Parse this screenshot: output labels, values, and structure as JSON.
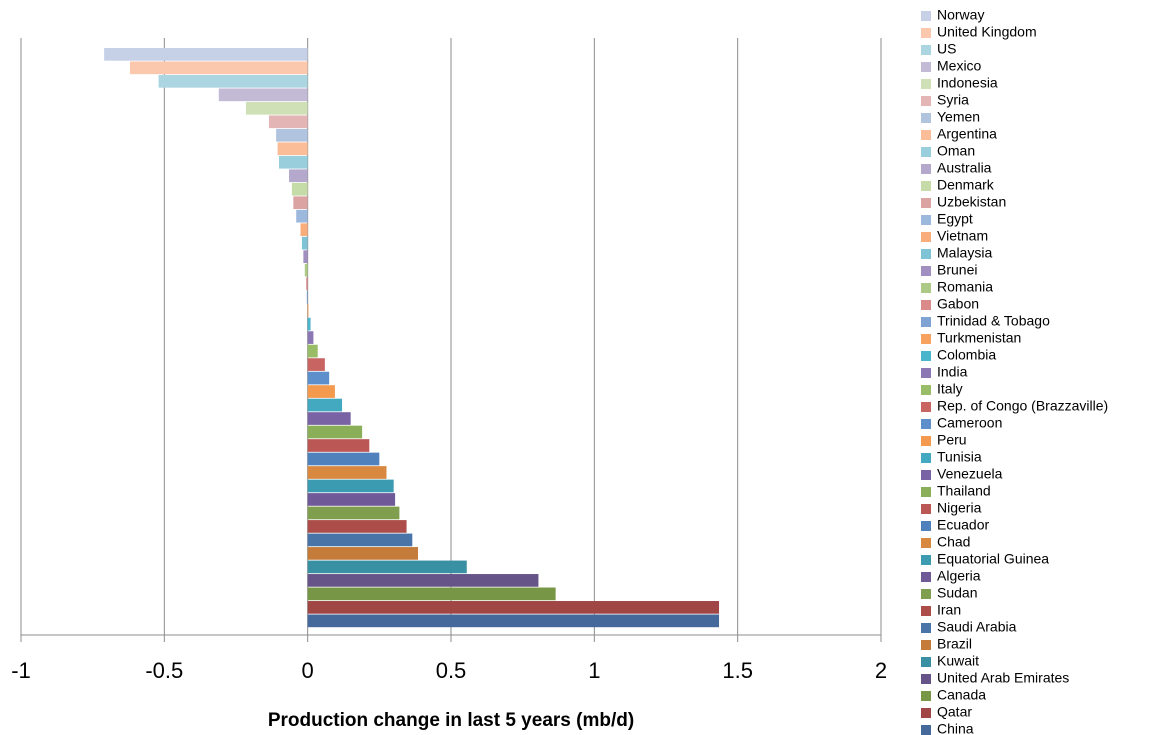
{
  "chart_data": {
    "type": "barh",
    "x_label": "Production change in last 5 years (mb/d)",
    "categories": [
      "Norway",
      "United Kingdom",
      "US",
      "Mexico",
      "Indonesia",
      "Syria",
      "Yemen",
      "Argentina",
      "Oman",
      "Australia",
      "Denmark",
      "Uzbekistan",
      "Egypt",
      "Vietnam",
      "Malaysia",
      "Brunei",
      "Romania",
      "Gabon",
      "Trinidad & Tobago",
      "Turkmenistan",
      "Colombia",
      "India",
      "Italy",
      "Rep. of Congo (Brazzaville)",
      "Cameroon",
      "Peru",
      "Tunisia",
      "Venezuela",
      "Thailand",
      "Nigeria",
      "Ecuador",
      "Chad",
      "Equatorial Guinea",
      "Algeria",
      "Sudan",
      "Iran",
      "Saudi Arabia",
      "Brazil",
      "Kuwait",
      "United Arab Emirates",
      "Canada",
      "Qatar",
      "China"
    ],
    "values": [
      -0.71,
      -0.62,
      -0.52,
      -0.31,
      -0.215,
      -0.135,
      -0.11,
      -0.105,
      -0.1,
      -0.065,
      -0.055,
      -0.05,
      -0.04,
      -0.025,
      -0.02,
      -0.015,
      -0.01,
      -0.005,
      -0.003,
      0.003,
      0.01,
      0.02,
      0.035,
      0.06,
      0.075,
      0.095,
      0.12,
      0.15,
      0.19,
      0.215,
      0.25,
      0.275,
      0.3,
      0.305,
      0.32,
      0.345,
      0.365,
      0.385,
      0.555,
      0.805,
      0.865,
      1.435,
      1.435
    ],
    "colors": [
      "#c6d0e6",
      "#fbc8ae",
      "#abd6e1",
      "#c3bad6",
      "#cfe0b6",
      "#e3b5b5",
      "#b0c3df",
      "#fbbd97",
      "#99cfdd",
      "#b4a9cc",
      "#c5dba8",
      "#dba4a3",
      "#9cb8dc",
      "#f9ad7a",
      "#7ec4d6",
      "#a08fc0",
      "#acca85",
      "#d98a89",
      "#7fa3d2",
      "#f7a25f",
      "#4bb5cb",
      "#8a77b3",
      "#98bd66",
      "#c86563",
      "#5d8fcc",
      "#f39a4e",
      "#43a9c0",
      "#7a63a4",
      "#8bae58",
      "#bb5755",
      "#4f81bd",
      "#d8893f",
      "#3b9bb0",
      "#6f5a97",
      "#7f9f4e",
      "#ad4d4a",
      "#4874a8",
      "#c57c3a",
      "#3990a3",
      "#665488",
      "#779646",
      "#a04644",
      "#44699a"
    ],
    "xlim": [
      -1,
      2
    ],
    "xticks": [
      -1,
      -0.5,
      0,
      0.5,
      1,
      1.5,
      2
    ],
    "grid": true
  }
}
